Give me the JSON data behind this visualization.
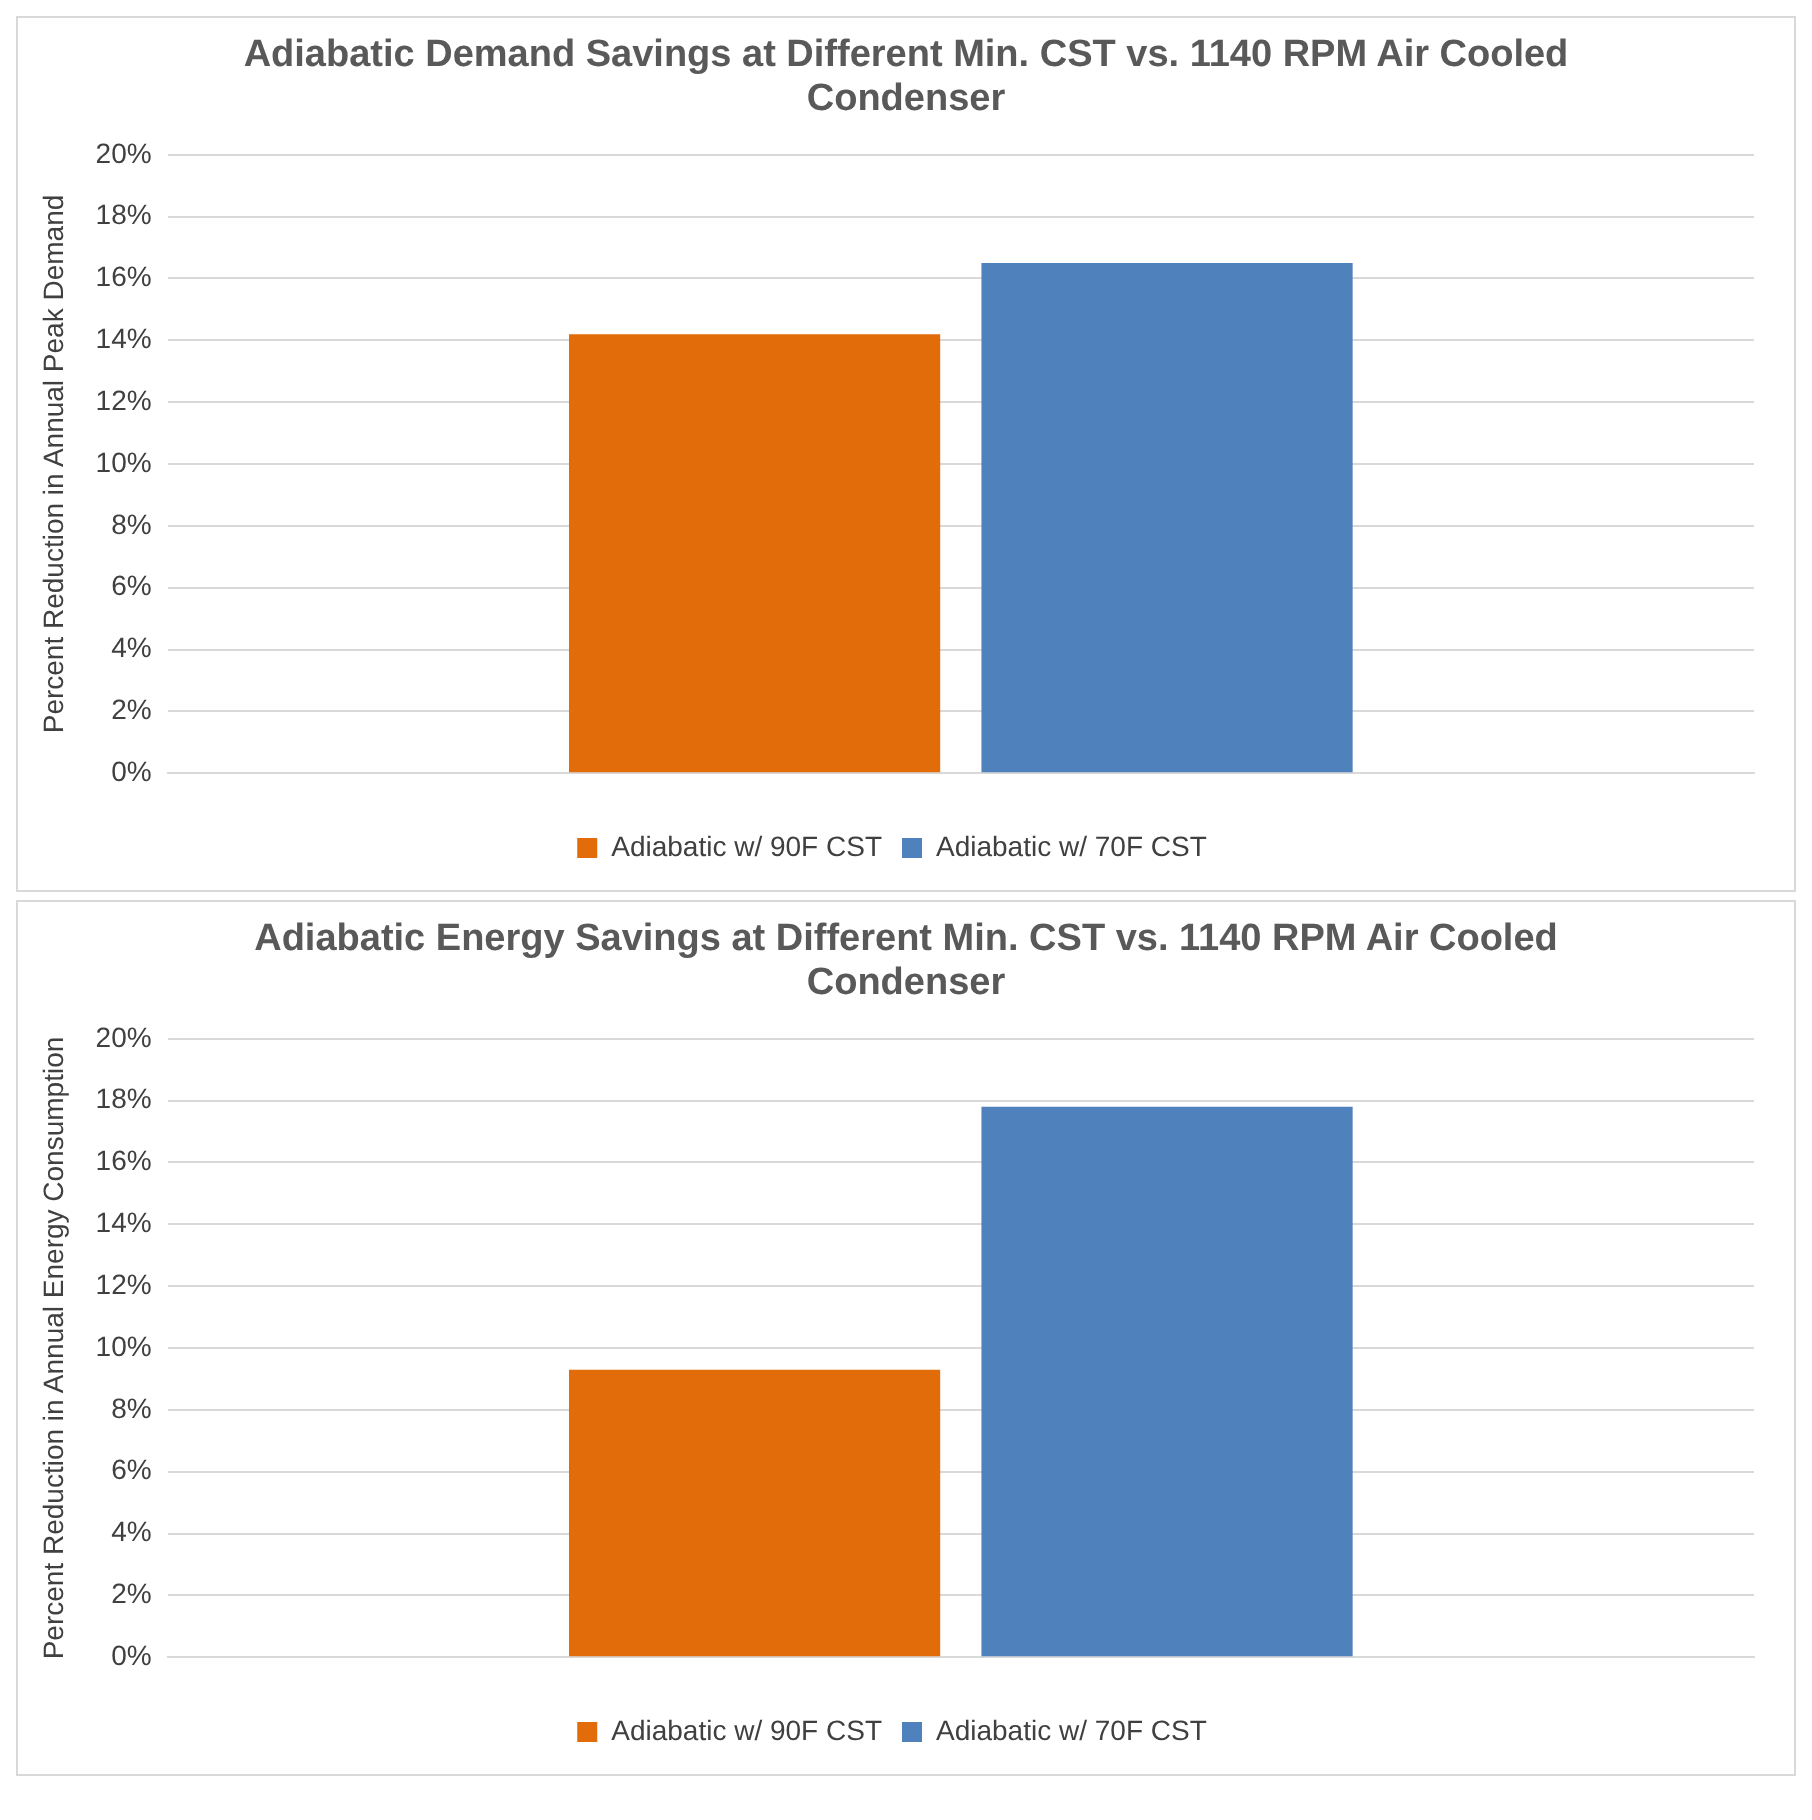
{
  "chart_data": [
    {
      "type": "bar",
      "title": "Adiabatic Demand Savings at Different Min. CST vs. 1140 RPM Air Cooled Condenser",
      "ylabel": "Percent Reduction in Annual Peak Demand",
      "categories": [
        null
      ],
      "series": [
        {
          "name": "Adiabatic w/ 90F CST",
          "color": "#e36c0a",
          "values": [
            14.2
          ]
        },
        {
          "name": "Adiabatic w/ 70F CST",
          "color": "#4f81bd",
          "values": [
            16.5
          ]
        }
      ],
      "ylim": [
        0,
        20
      ],
      "yticks": [
        {
          "value": 0,
          "label": "0%"
        },
        {
          "value": 2,
          "label": "2%"
        },
        {
          "value": 4,
          "label": "4%"
        },
        {
          "value": 6,
          "label": "6%"
        },
        {
          "value": 8,
          "label": "8%"
        },
        {
          "value": 10,
          "label": "10%"
        },
        {
          "value": 12,
          "label": "12%"
        },
        {
          "value": 14,
          "label": "14%"
        },
        {
          "value": 16,
          "label": "16%"
        },
        {
          "value": 18,
          "label": "18%"
        },
        {
          "value": 20,
          "label": "20%"
        }
      ],
      "grid": "y",
      "legend": "bottom"
    },
    {
      "type": "bar",
      "title": "Adiabatic Energy Savings at Different Min. CST vs. 1140 RPM Air Cooled Condenser",
      "ylabel": "Percent Reduction in Annual Energy Consumption",
      "categories": [
        null
      ],
      "series": [
        {
          "name": "Adiabatic w/ 90F CST",
          "color": "#e36c0a",
          "values": [
            9.3
          ]
        },
        {
          "name": "Adiabatic w/ 70F CST",
          "color": "#4f81bd",
          "values": [
            17.8
          ]
        }
      ],
      "ylim": [
        0,
        20
      ],
      "yticks": [
        {
          "value": 0,
          "label": "0%"
        },
        {
          "value": 2,
          "label": "2%"
        },
        {
          "value": 4,
          "label": "4%"
        },
        {
          "value": 6,
          "label": "6%"
        },
        {
          "value": 8,
          "label": "8%"
        },
        {
          "value": 10,
          "label": "10%"
        },
        {
          "value": 12,
          "label": "12%"
        },
        {
          "value": 14,
          "label": "14%"
        },
        {
          "value": 16,
          "label": "16%"
        },
        {
          "value": 18,
          "label": "18%"
        },
        {
          "value": 20,
          "label": "20%"
        }
      ],
      "grid": "y",
      "legend": "bottom"
    }
  ]
}
